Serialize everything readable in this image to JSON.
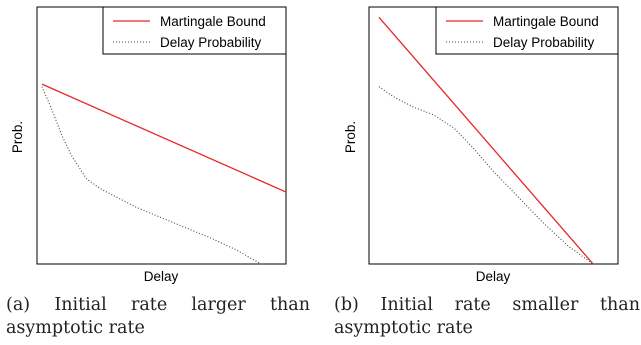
{
  "chart_data": [
    {
      "type": "line",
      "xlabel": "Delay",
      "ylabel": "Prob.",
      "legend_position": "top-right",
      "grid": false,
      "xlim": [
        0,
        1
      ],
      "ylim": [
        0,
        1
      ],
      "series": [
        {
          "name": "Martingale Bound",
          "style": "solid",
          "color": "#e8262a",
          "x": [
            0.02,
            1.0
          ],
          "y": [
            0.7,
            0.28
          ]
        },
        {
          "name": "Delay Probability",
          "style": "dotted",
          "color": "#444444",
          "x": [
            0.02,
            0.06,
            0.1,
            0.14,
            0.2,
            0.26,
            0.3,
            0.4,
            0.5,
            0.6,
            0.7,
            0.8,
            0.9
          ],
          "y": [
            0.69,
            0.6,
            0.5,
            0.42,
            0.33,
            0.29,
            0.27,
            0.22,
            0.18,
            0.14,
            0.1,
            0.055,
            0.0
          ]
        }
      ],
      "caption": "(a) Initial rate larger than asymptotic rate"
    },
    {
      "type": "line",
      "xlabel": "Delay",
      "ylabel": "Prob.",
      "legend_position": "top-right",
      "grid": false,
      "xlim": [
        0,
        1
      ],
      "ylim": [
        0,
        1
      ],
      "series": [
        {
          "name": "Martingale Bound",
          "style": "solid",
          "color": "#e8262a",
          "x": [
            0.04,
            0.9
          ],
          "y": [
            0.96,
            0.0
          ]
        },
        {
          "name": "Delay Probability",
          "style": "dotted",
          "color": "#444444",
          "x": [
            0.04,
            0.1,
            0.18,
            0.26,
            0.34,
            0.42,
            0.5,
            0.6,
            0.7,
            0.8,
            0.9
          ],
          "y": [
            0.69,
            0.65,
            0.61,
            0.58,
            0.53,
            0.45,
            0.36,
            0.26,
            0.16,
            0.07,
            0.0
          ]
        }
      ],
      "caption": "(b) Initial rate smaller than asymptotic rate"
    }
  ]
}
